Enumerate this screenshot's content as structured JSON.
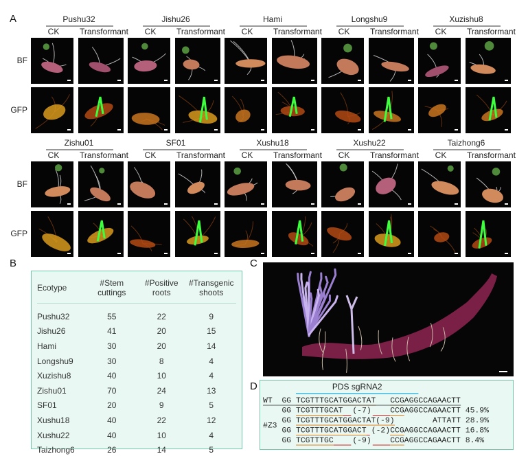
{
  "panel_a": {
    "label": "A",
    "columns": [
      "CK",
      "Transformant"
    ],
    "rows": [
      "BF",
      "GFP"
    ],
    "groups": [
      "Pushu32",
      "Jishu26",
      "Hami",
      "Longshu9",
      "Xuzishu8",
      "Zishu01",
      "SF01",
      "Xushu18",
      "Xushu22",
      "Taizhong6"
    ]
  },
  "panel_b": {
    "label": "B",
    "header": [
      "Ecotype",
      "#Stem cuttings",
      "#Positive roots",
      "#Transgenic shoots"
    ],
    "rows": [
      [
        "Pushu32",
        55,
        22,
        9
      ],
      [
        "Jishu26",
        41,
        20,
        15
      ],
      [
        "Hami",
        30,
        20,
        14
      ],
      [
        "Longshu9",
        30,
        8,
        4
      ],
      [
        "Xuzishu8",
        40,
        10,
        4
      ],
      [
        "Zishu01",
        70,
        24,
        13
      ],
      [
        "SF01",
        20,
        9,
        5
      ],
      [
        "Xushu18",
        40,
        22,
        12
      ],
      [
        "Xushu22",
        40,
        10,
        4
      ],
      [
        "Taizhong6",
        26,
        14,
        5
      ]
    ]
  },
  "panel_c": {
    "label": "C"
  },
  "panel_d": {
    "label": "D",
    "title": "PDS sgRNA2",
    "group_label": "#Z3",
    "rows": [
      {
        "label": "WT",
        "segments": [
          {
            "text": "GG",
            "color": "#222222"
          },
          {
            "text": "TCGTTTGCATGGACTAT",
            "color": "#e07b1a"
          },
          {
            "text": "CCG",
            "color": "#e07b1a"
          },
          {
            "text": "AGG",
            "color": "#1aa7d8"
          },
          {
            "text": "CCAGAACTT",
            "color": "#222222"
          }
        ]
      },
      {
        "segments": [
          {
            "text": "GG",
            "color": "#222222"
          },
          {
            "text": "TCGTTTGCAT",
            "color": "#e07b1a"
          },
          {
            "text": "(-7)",
            "color": "#d42020"
          },
          {
            "text": "CCG",
            "color": "#e07b1a"
          },
          {
            "text": "AGG",
            "color": "#1aa7d8"
          },
          {
            "text": "CCAGAACTT 45.9%",
            "color": "#222222"
          }
        ]
      },
      {
        "segments": [
          {
            "text": "GG",
            "color": "#222222"
          },
          {
            "text": "TCGTTTGCATGGACTAT(-9)",
            "color": "#e07b1a"
          },
          {
            "text": "ATTA",
            "color": "#d42020"
          },
          {
            "text": "TT 28.9%",
            "color": "#222222"
          }
        ]
      },
      {
        "segments": [
          {
            "text": "GG",
            "color": "#222222"
          },
          {
            "text": "TCGTTTGCATGGACT",
            "color": "#e07b1a"
          },
          {
            "text": "(-2)",
            "color": "#d42020"
          },
          {
            "text": "CCG",
            "color": "#e07b1a"
          },
          {
            "text": "AGG",
            "color": "#1aa7d8"
          },
          {
            "text": "CCAGAACTT 16.8%",
            "color": "#222222"
          }
        ]
      },
      {
        "segments": [
          {
            "text": "GG",
            "color": "#222222"
          },
          {
            "text": "TCGTTTGC",
            "color": "#e07b1a"
          },
          {
            "text": "(-9)",
            "color": "#d42020"
          },
          {
            "text": "CCG",
            "color": "#e07b1a"
          },
          {
            "text": "AGG",
            "color": "#1aa7d8"
          },
          {
            "text": "CCAGAACTT 8.4%",
            "color": "#222222"
          }
        ]
      }
    ]
  }
}
